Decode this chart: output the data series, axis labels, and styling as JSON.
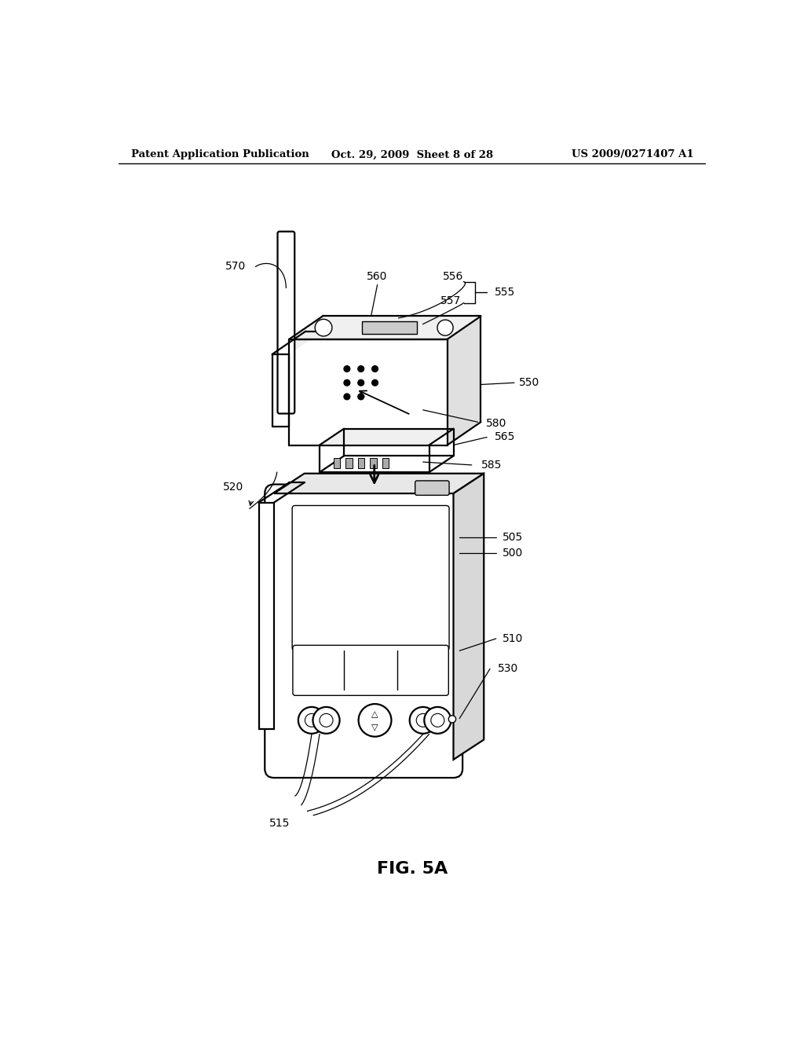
{
  "bg_color": "#ffffff",
  "header_left": "Patent Application Publication",
  "header_center": "Oct. 29, 2009  Sheet 8 of 28",
  "header_right": "US 2009/0271407 A1",
  "figure_label": "FIG. 5A",
  "line_color": "#000000",
  "lw_main": 1.6,
  "lw_thin": 1.0,
  "lw_leader": 0.9,
  "label_fs": 10
}
